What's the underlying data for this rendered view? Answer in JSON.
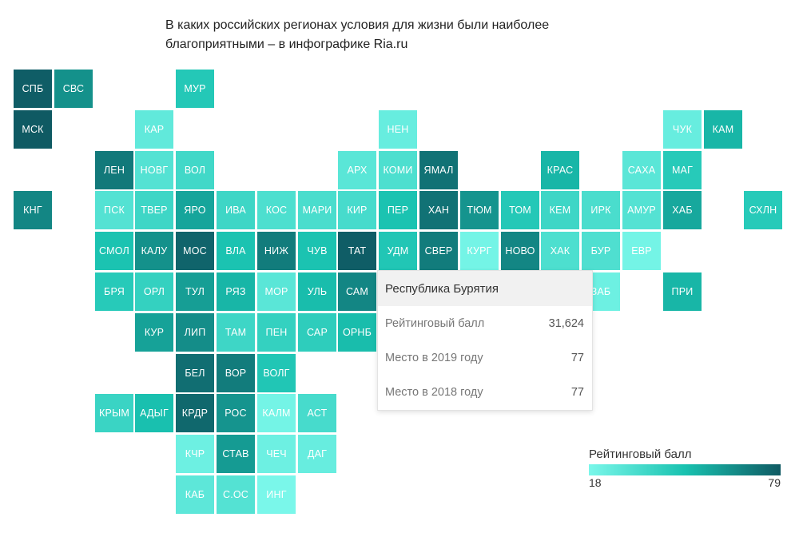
{
  "title": {
    "line1": "В каких российских регионах условия для жизни были наиболее",
    "line2": "благоприятными – в инфографике Ria.ru"
  },
  "tooltip": {
    "region": "Республика Бурятия",
    "rows": [
      {
        "label": "Рейтинговый балл",
        "value": "31,624"
      },
      {
        "label": "Место в 2019 году",
        "value": "77"
      },
      {
        "label": "Место в 2018 году",
        "value": "77"
      }
    ]
  },
  "legend": {
    "title": "Рейтинговый балл",
    "min": "18",
    "max": "79",
    "color_min": "#7af7ea",
    "color_mid": "#19c2b0",
    "color_max": "#0f5a63"
  },
  "chart_data": {
    "type": "heatmap",
    "title": "В каких российских регионах условия для жизни были наиболее благоприятными – в инфографике Ria.ru",
    "value_range": [
      18,
      79
    ],
    "tiles": [
      {
        "label": "СПБ",
        "col": 0,
        "row": 0,
        "value": 78
      },
      {
        "label": "СВС",
        "col": 1,
        "row": 0,
        "value": 63
      },
      {
        "label": "МУР",
        "col": 4,
        "row": 0,
        "value": 45
      },
      {
        "label": "МСК",
        "col": 0,
        "row": 1,
        "value": 79
      },
      {
        "label": "КАР",
        "col": 3,
        "row": 1,
        "value": 26
      },
      {
        "label": "НЕН",
        "col": 9,
        "row": 1,
        "value": 24
      },
      {
        "label": "ЧУК",
        "col": 16,
        "row": 1,
        "value": 24
      },
      {
        "label": "КАМ",
        "col": 17,
        "row": 1,
        "value": 52
      },
      {
        "label": "ЛЕН",
        "col": 2,
        "row": 2,
        "value": 70
      },
      {
        "label": "НОВГ",
        "col": 3,
        "row": 2,
        "value": 30
      },
      {
        "label": "ВОЛ",
        "col": 4,
        "row": 2,
        "value": 36
      },
      {
        "label": "АРХ",
        "col": 8,
        "row": 2,
        "value": 28
      },
      {
        "label": "КОМИ",
        "col": 9,
        "row": 2,
        "value": 32
      },
      {
        "label": "ЯМАЛ",
        "col": 10,
        "row": 2,
        "value": 72
      },
      {
        "label": "КРАС",
        "col": 13,
        "row": 2,
        "value": 52
      },
      {
        "label": "САХА",
        "col": 15,
        "row": 2,
        "value": 28
      },
      {
        "label": "МАГ",
        "col": 16,
        "row": 2,
        "value": 44
      },
      {
        "label": "КНГ",
        "col": 0,
        "row": 3,
        "value": 66
      },
      {
        "label": "ПСК",
        "col": 2,
        "row": 3,
        "value": 30
      },
      {
        "label": "ТВЕР",
        "col": 3,
        "row": 3,
        "value": 37
      },
      {
        "label": "ЯРО",
        "col": 4,
        "row": 3,
        "value": 57
      },
      {
        "label": "ИВА",
        "col": 5,
        "row": 3,
        "value": 37
      },
      {
        "label": "КОС",
        "col": 6,
        "row": 3,
        "value": 32
      },
      {
        "label": "МАРИ",
        "col": 7,
        "row": 3,
        "value": 33
      },
      {
        "label": "КИР",
        "col": 8,
        "row": 3,
        "value": 34
      },
      {
        "label": "ПЕР",
        "col": 9,
        "row": 3,
        "value": 48
      },
      {
        "label": "ХАН",
        "col": 10,
        "row": 3,
        "value": 72
      },
      {
        "label": "ТЮМ",
        "col": 11,
        "row": 3,
        "value": 62
      },
      {
        "label": "ТОМ",
        "col": 12,
        "row": 3,
        "value": 45
      },
      {
        "label": "КЕМ",
        "col": 13,
        "row": 3,
        "value": 37
      },
      {
        "label": "ИРК",
        "col": 14,
        "row": 3,
        "value": 33
      },
      {
        "label": "АМУР",
        "col": 15,
        "row": 3,
        "value": 30
      },
      {
        "label": "ХАБ",
        "col": 16,
        "row": 3,
        "value": 56
      },
      {
        "label": "СХЛН",
        "col": 18,
        "row": 3,
        "value": 44
      },
      {
        "label": "СМОЛ",
        "col": 2,
        "row": 4,
        "value": 48
      },
      {
        "label": "КАЛУ",
        "col": 3,
        "row": 4,
        "value": 63
      },
      {
        "label": "МОС",
        "col": 4,
        "row": 4,
        "value": 76
      },
      {
        "label": "ВЛА",
        "col": 5,
        "row": 4,
        "value": 48
      },
      {
        "label": "НИЖ",
        "col": 6,
        "row": 4,
        "value": 69
      },
      {
        "label": "ЧУВ",
        "col": 7,
        "row": 4,
        "value": 48
      },
      {
        "label": "ТАТ",
        "col": 8,
        "row": 4,
        "value": 78
      },
      {
        "label": "УДМ",
        "col": 9,
        "row": 4,
        "value": 46
      },
      {
        "label": "СВЕР",
        "col": 10,
        "row": 4,
        "value": 69
      },
      {
        "label": "КУРГ",
        "col": 11,
        "row": 4,
        "value": 20
      },
      {
        "label": "НОВО",
        "col": 12,
        "row": 4,
        "value": 66
      },
      {
        "label": "ХАК",
        "col": 13,
        "row": 4,
        "value": 32
      },
      {
        "label": "БУР",
        "col": 14,
        "row": 4,
        "value": 31.624
      },
      {
        "label": "ЕВР",
        "col": 15,
        "row": 4,
        "value": 20
      },
      {
        "label": "БРЯ",
        "col": 2,
        "row": 5,
        "value": 44
      },
      {
        "label": "ОРЛ",
        "col": 3,
        "row": 5,
        "value": 40
      },
      {
        "label": "ТУЛ",
        "col": 4,
        "row": 5,
        "value": 59
      },
      {
        "label": "РЯЗ",
        "col": 5,
        "row": 5,
        "value": 52
      },
      {
        "label": "МОР",
        "col": 6,
        "row": 5,
        "value": 28
      },
      {
        "label": "УЛЬ",
        "col": 7,
        "row": 5,
        "value": 50
      },
      {
        "label": "САМ",
        "col": 8,
        "row": 5,
        "value": 66
      },
      {
        "label": "ЗАБ",
        "col": 14,
        "row": 5,
        "value": 22
      },
      {
        "label": "ПРИ",
        "col": 16,
        "row": 5,
        "value": 52
      },
      {
        "label": "КУР",
        "col": 3,
        "row": 6,
        "value": 58
      },
      {
        "label": "ЛИП",
        "col": 4,
        "row": 6,
        "value": 64
      },
      {
        "label": "ТАМ",
        "col": 5,
        "row": 6,
        "value": 37
      },
      {
        "label": "ПЕН",
        "col": 6,
        "row": 6,
        "value": 40
      },
      {
        "label": "САР",
        "col": 7,
        "row": 6,
        "value": 42
      },
      {
        "label": "ОРНБ",
        "col": 8,
        "row": 6,
        "value": 50
      },
      {
        "label": "БЕЛ",
        "col": 4,
        "row": 7,
        "value": 73
      },
      {
        "label": "ВОР",
        "col": 5,
        "row": 7,
        "value": 69
      },
      {
        "label": "ВОЛГ",
        "col": 6,
        "row": 7,
        "value": 46
      },
      {
        "label": "КРЫМ",
        "col": 2,
        "row": 8,
        "value": 38
      },
      {
        "label": "АДЫГ",
        "col": 3,
        "row": 8,
        "value": 49
      },
      {
        "label": "КРДР",
        "col": 4,
        "row": 8,
        "value": 75
      },
      {
        "label": "РОС",
        "col": 5,
        "row": 8,
        "value": 62
      },
      {
        "label": "КАЛМ",
        "col": 6,
        "row": 8,
        "value": 20
      },
      {
        "label": "АСТ",
        "col": 7,
        "row": 8,
        "value": 34
      },
      {
        "label": "КЧР",
        "col": 4,
        "row": 9,
        "value": 22
      },
      {
        "label": "СТАВ",
        "col": 5,
        "row": 9,
        "value": 60
      },
      {
        "label": "ЧЕЧ",
        "col": 6,
        "row": 9,
        "value": 22
      },
      {
        "label": "ДАГ",
        "col": 7,
        "row": 9,
        "value": 24
      },
      {
        "label": "КАБ",
        "col": 4,
        "row": 10,
        "value": 27
      },
      {
        "label": "С.ОС",
        "col": 5,
        "row": 10,
        "value": 30
      },
      {
        "label": "ИНГ",
        "col": 6,
        "row": 10,
        "value": 18
      }
    ]
  }
}
